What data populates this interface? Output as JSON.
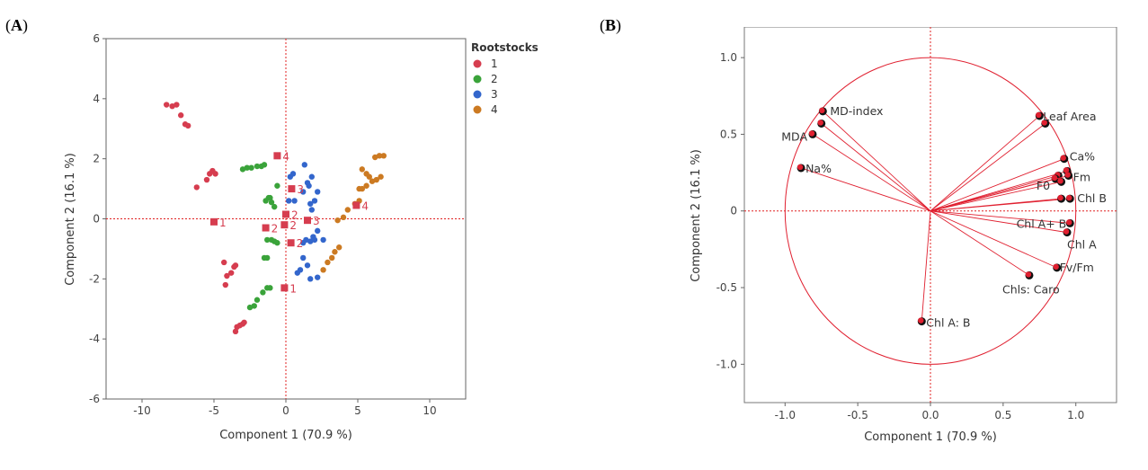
{
  "panels": {
    "a_label": {
      "open": "(",
      "letter": "A",
      "close": ")"
    },
    "b_label": {
      "open": "(",
      "letter": "B",
      "close": ")"
    }
  },
  "chart_data": [
    {
      "type": "scatter",
      "xlabel": "Component 1  (70.9 %)",
      "ylabel": "Component 2  (16.1 %)",
      "xlim": [
        -12.5,
        12.5
      ],
      "ylim": [
        -6,
        6
      ],
      "xticks": [
        -10,
        -5,
        0,
        5,
        10
      ],
      "yticks": [
        -6,
        -4,
        -2,
        0,
        2,
        4,
        6
      ],
      "grid": false,
      "reference_lines": {
        "x": 0,
        "y": 0,
        "color": "#e02020",
        "style": "dotted"
      },
      "legend": {
        "title": "Rootstocks",
        "position": "top-right"
      },
      "series": [
        {
          "name": "1",
          "color": "#d63d4f",
          "points": [
            [
              -8.3,
              3.8
            ],
            [
              -7.9,
              3.75
            ],
            [
              -7.6,
              3.8
            ],
            [
              -7.3,
              3.45
            ],
            [
              -7.0,
              3.15
            ],
            [
              -6.8,
              3.1
            ],
            [
              -6.2,
              1.05
            ],
            [
              -5.3,
              1.5
            ],
            [
              -5.1,
              1.6
            ],
            [
              -4.9,
              1.5
            ],
            [
              -5.5,
              1.3
            ],
            [
              -4.3,
              -1.45
            ],
            [
              -4.1,
              -1.9
            ],
            [
              -4.2,
              -2.2
            ],
            [
              -3.8,
              -1.8
            ],
            [
              -3.6,
              -1.6
            ],
            [
              -3.5,
              -1.55
            ],
            [
              -3.4,
              -3.6
            ],
            [
              -3.2,
              -3.55
            ],
            [
              -3.0,
              -3.5
            ],
            [
              -3.5,
              -3.75
            ],
            [
              -2.9,
              -3.45
            ]
          ]
        },
        {
          "name": "2",
          "color": "#3aa33a",
          "points": [
            [
              -3.0,
              1.65
            ],
            [
              -2.7,
              1.7
            ],
            [
              -2.4,
              1.7
            ],
            [
              -2.0,
              1.75
            ],
            [
              -1.7,
              1.75
            ],
            [
              -1.5,
              1.8
            ],
            [
              -1.4,
              0.6
            ],
            [
              -1.2,
              0.7
            ],
            [
              -1.0,
              0.55
            ],
            [
              -1.1,
              0.7
            ],
            [
              -0.8,
              0.4
            ],
            [
              -0.6,
              1.1
            ],
            [
              -1.5,
              -1.3
            ],
            [
              -1.3,
              -1.3
            ],
            [
              -1.0,
              -0.7
            ],
            [
              -0.8,
              -0.75
            ],
            [
              -0.6,
              -0.8
            ],
            [
              -1.3,
              -0.7
            ],
            [
              -2.5,
              -2.95
            ],
            [
              -2.2,
              -2.9
            ],
            [
              -2.0,
              -2.7
            ],
            [
              -1.6,
              -2.45
            ],
            [
              -1.3,
              -2.3
            ],
            [
              -1.1,
              -2.3
            ]
          ]
        },
        {
          "name": "3",
          "color": "#3366cc",
          "points": [
            [
              0.3,
              1.4
            ],
            [
              0.5,
              1.5
            ],
            [
              0.2,
              0.6
            ],
            [
              0.6,
              0.6
            ],
            [
              1.3,
              1.8
            ],
            [
              1.5,
              1.2
            ],
            [
              1.6,
              1.1
            ],
            [
              1.8,
              1.4
            ],
            [
              1.2,
              0.9
            ],
            [
              2.2,
              0.9
            ],
            [
              2.0,
              0.6
            ],
            [
              1.8,
              0.3
            ],
            [
              1.7,
              0.5
            ],
            [
              2.2,
              -0.4
            ],
            [
              1.9,
              -0.6
            ],
            [
              1.4,
              -0.7
            ],
            [
              1.2,
              -0.8
            ],
            [
              1.7,
              -0.75
            ],
            [
              2.6,
              -0.7
            ],
            [
              2.0,
              -0.7
            ],
            [
              1.2,
              -1.3
            ],
            [
              1.5,
              -1.55
            ],
            [
              1.0,
              -1.7
            ],
            [
              0.8,
              -1.8
            ],
            [
              1.7,
              -2.0
            ],
            [
              2.2,
              -1.95
            ]
          ]
        },
        {
          "name": "4",
          "color": "#cc7a22",
          "points": [
            [
              5.3,
              1.65
            ],
            [
              5.6,
              1.5
            ],
            [
              5.8,
              1.4
            ],
            [
              6.2,
              2.05
            ],
            [
              6.5,
              2.1
            ],
            [
              6.8,
              2.1
            ],
            [
              5.1,
              1.0
            ],
            [
              5.3,
              1.0
            ],
            [
              5.6,
              1.1
            ],
            [
              6.0,
              1.25
            ],
            [
              6.3,
              1.3
            ],
            [
              6.6,
              1.4
            ],
            [
              3.6,
              -0.05
            ],
            [
              4.0,
              0.05
            ],
            [
              4.3,
              0.3
            ],
            [
              4.8,
              0.5
            ],
            [
              5.1,
              0.6
            ],
            [
              3.4,
              -1.1
            ],
            [
              3.2,
              -1.3
            ],
            [
              2.9,
              -1.45
            ],
            [
              2.6,
              -1.7
            ],
            [
              3.7,
              -0.95
            ]
          ]
        }
      ],
      "centroids": [
        {
          "label": "1",
          "x": -5.0,
          "y": -0.1
        },
        {
          "label": "1",
          "x": -0.1,
          "y": -2.3
        },
        {
          "label": "2",
          "x": -1.4,
          "y": -0.3
        },
        {
          "label": "2",
          "x": -0.1,
          "y": -0.2
        },
        {
          "label": "2",
          "x": 0.0,
          "y": 0.15
        },
        {
          "label": "2",
          "x": 0.35,
          "y": -0.8
        },
        {
          "label": "3",
          "x": 0.4,
          "y": 1.0
        },
        {
          "label": "3",
          "x": 1.5,
          "y": -0.05
        },
        {
          "label": "4",
          "x": -0.6,
          "y": 2.1
        },
        {
          "label": "4",
          "x": 4.9,
          "y": 0.45
        }
      ]
    },
    {
      "type": "scatter",
      "subtype": "loading-plot",
      "xlabel": "Component 1  (70.9 %)",
      "ylabel": "Component 2  (16.1 %)",
      "xlim": [
        -1.28,
        1.28
      ],
      "ylim": [
        -1.25,
        1.2
      ],
      "xticks": [
        -1.0,
        -0.5,
        0.0,
        0.5,
        1.0
      ],
      "yticks": [
        -1.0,
        -0.5,
        0.0,
        0.5,
        1.0
      ],
      "yticklabels": [
        "-1.0",
        "-0.5",
        "0",
        "0.5",
        "1.0"
      ],
      "grid": false,
      "unit_circle": true,
      "color": "#e02030",
      "loadings": [
        {
          "label": "MD-index",
          "x": -0.74,
          "y": 0.65
        },
        {
          "label": "",
          "x": -0.75,
          "y": 0.57
        },
        {
          "label": "MDA",
          "x": -0.81,
          "y": 0.5
        },
        {
          "label": "Na%",
          "x": -0.89,
          "y": 0.28
        },
        {
          "label": "Leaf Area",
          "x": 0.75,
          "y": 0.62
        },
        {
          "label": "",
          "x": 0.79,
          "y": 0.57
        },
        {
          "label": "Ca%",
          "x": 0.92,
          "y": 0.34
        },
        {
          "label": "",
          "x": 0.94,
          "y": 0.26
        },
        {
          "label": "",
          "x": 0.88,
          "y": 0.23
        },
        {
          "label": "F0",
          "x": 0.86,
          "y": 0.21
        },
        {
          "label": "Fm",
          "x": 0.95,
          "y": 0.23
        },
        {
          "label": "",
          "x": 0.9,
          "y": 0.19
        },
        {
          "label": "Chl B",
          "x": 0.96,
          "y": 0.08
        },
        {
          "label": "",
          "x": 0.9,
          "y": 0.08
        },
        {
          "label": "Chl A+ B",
          "x": 0.96,
          "y": -0.08
        },
        {
          "label": "Chl A",
          "x": 0.94,
          "y": -0.14
        },
        {
          "label": "Fv/Fm",
          "x": 0.87,
          "y": -0.37
        },
        {
          "label": "Chls: Caro",
          "x": 0.68,
          "y": -0.42
        },
        {
          "label": "Chl A: B",
          "x": -0.06,
          "y": -0.72
        }
      ]
    }
  ]
}
